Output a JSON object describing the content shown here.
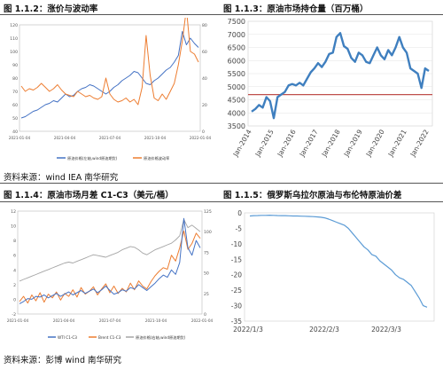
{
  "titles": {
    "tl": "图 1.1.2：涨价与波动率",
    "tr": "图 1.1.3：原油市场持仓量（百万桶）",
    "bl": "图 1.1.4：原油市场月差 C1-C3（美元/桶）",
    "br": "图 1.1.5：俄罗斯乌拉尔原油与布伦特原油价差"
  },
  "sources": {
    "top": "资料来源：wind   IEA 南华研究",
    "bottom": "资料来源：彭博  wind  南华研究"
  },
  "chart_data": [
    {
      "id": "tl",
      "type": "line",
      "title": "",
      "x_ticks": [
        "2021-01-04",
        "2021-04-04",
        "2021-07-04",
        "2021-10-04",
        "2022-01-04"
      ],
      "y_left_ticks": [
        40,
        50,
        60,
        70,
        80,
        90,
        100,
        110,
        120
      ],
      "y_right_ticks": [
        0,
        20,
        40,
        60,
        80
      ],
      "legend": [
        "原油价格(左轴,wind原油期货)",
        "原油价格波动率"
      ],
      "series": [
        {
          "name": "原油价格(左轴,wind原油期货)",
          "color": "#4472c4",
          "axis": "left",
          "values": [
            50,
            51,
            53,
            55,
            56,
            58,
            60,
            61,
            63,
            62,
            65,
            68,
            66,
            67,
            70,
            72,
            73,
            75,
            74,
            72,
            70,
            68,
            70,
            73,
            75,
            78,
            80,
            82,
            85,
            84,
            80,
            76,
            75,
            78,
            80,
            83,
            86,
            88,
            92,
            97,
            115,
            105,
            110,
            106,
            103
          ]
        },
        {
          "name": "原油价格波动率",
          "color": "#ed7d31",
          "axis": "right",
          "values": [
            34,
            30,
            32,
            31,
            33,
            36,
            33,
            30,
            32,
            35,
            31,
            28,
            27,
            26,
            30,
            28,
            26,
            27,
            25,
            24,
            26,
            40,
            28,
            24,
            22,
            23,
            25,
            22,
            24,
            20,
            33,
            72,
            42,
            25,
            23,
            28,
            24,
            30,
            36,
            50,
            68,
            92,
            60,
            58,
            52
          ]
        }
      ]
    },
    {
      "id": "tr",
      "type": "line",
      "title": "",
      "x_ticks": [
        "Jan-2014",
        "Jan-2015",
        "Jan-2016",
        "Jan-2017",
        "Jan-2018",
        "Jan-2019",
        "Jan-2020",
        "Jan-2021",
        "Jan-2022"
      ],
      "ylim": [
        3500,
        7500
      ],
      "y_ticks": [
        3500,
        4000,
        4500,
        5000,
        5500,
        6000,
        6500,
        7000,
        7500
      ],
      "hline": {
        "value": 4700,
        "color": "#c0504d"
      },
      "series": [
        {
          "name": "",
          "color": "#3f7fbf",
          "values": [
            4050,
            4150,
            4300,
            4200,
            4600,
            4450,
            3800,
            4600,
            4700,
            4800,
            5050,
            5100,
            5050,
            5150,
            5050,
            5300,
            5550,
            5700,
            5900,
            5750,
            5950,
            6250,
            6300,
            6900,
            7050,
            6550,
            6450,
            6100,
            5950,
            6300,
            6200,
            5950,
            5900,
            6200,
            6500,
            6200,
            6050,
            6400,
            6200,
            6500,
            6900,
            6500,
            6300,
            5700,
            5600,
            5500,
            4950,
            5700,
            5600
          ]
        }
      ]
    },
    {
      "id": "bl",
      "type": "line",
      "title": "",
      "x_ticks": [
        "2021-01-04",
        "2021-04-04",
        "2021-07-04",
        "2021-10-04",
        "2022-01-04"
      ],
      "y_left_ticks": [
        -2,
        0,
        2,
        4,
        6,
        8,
        10,
        12
      ],
      "y_right_ticks": [
        0,
        25,
        50,
        75,
        100,
        125
      ],
      "legend": [
        "WTI C1-C3",
        "Brent C1-C3",
        "原油价格(右轴,wind原油期货)"
      ],
      "series": [
        {
          "name": "WTI C1-C3",
          "color": "#4472c4",
          "axis": "left",
          "values": [
            -0.6,
            -0.3,
            0.1,
            0.0,
            0.4,
            0.3,
            0.6,
            0.2,
            0.5,
            0.8,
            0.4,
            0.7,
            1.0,
            0.6,
            0.9,
            1.2,
            0.8,
            1.1,
            1.4,
            0.9,
            1.3,
            1.8,
            1.2,
            0.7,
            0.9,
            1.3,
            1.1,
            1.6,
            1.4,
            2.0,
            1.6,
            1.2,
            1.7,
            2.2,
            2.8,
            3.3,
            3.0,
            4.0,
            3.4,
            5.0,
            11.0,
            7.0,
            6.0,
            8.0,
            7.0
          ]
        },
        {
          "name": "Brent C1-C3",
          "color": "#ed7d31",
          "axis": "left",
          "values": [
            -0.3,
            0.4,
            -0.5,
            0.6,
            -0.2,
            0.9,
            -0.4,
            0.7,
            0.2,
            1.0,
            -0.1,
            0.8,
            0.4,
            1.3,
            0.3,
            1.6,
            0.7,
            1.1,
            1.7,
            0.6,
            1.4,
            2.1,
            0.9,
            1.8,
            0.8,
            1.5,
            1.0,
            2.2,
            1.3,
            2.5,
            1.8,
            1.4,
            2.4,
            3.2,
            3.8,
            4.3,
            4.1,
            6.0,
            5.2,
            7.0,
            9.3,
            6.8,
            7.6,
            9.0,
            8.3
          ]
        },
        {
          "name": "原油价格(右轴,wind原油期货)",
          "color": "#a5a5a5",
          "axis": "right",
          "values": [
            40,
            42,
            44,
            46,
            48,
            50,
            52,
            54,
            56,
            58,
            60,
            62,
            63,
            62,
            64,
            66,
            68,
            70,
            72,
            71,
            70,
            69,
            71,
            73,
            75,
            78,
            80,
            82,
            81,
            78,
            74,
            72,
            75,
            78,
            80,
            82,
            84,
            86,
            90,
            95,
            115,
            105,
            108,
            104,
            100
          ]
        }
      ]
    },
    {
      "id": "br",
      "type": "line",
      "title": "",
      "x_ticks": [
        "2022/1/3",
        "2022/2/3",
        "2022/3/3"
      ],
      "ylim": [
        -35,
        0
      ],
      "y_ticks": [
        0,
        -5,
        -10,
        -15,
        -20,
        -25,
        -30,
        -35
      ],
      "series": [
        {
          "name": "",
          "color": "#5b9bd5",
          "values": [
            -1.0,
            -0.9,
            -0.85,
            -0.8,
            -0.8,
            -0.75,
            -0.8,
            -0.85,
            -0.9,
            -0.9,
            -0.95,
            -1.0,
            -1.0,
            -1.05,
            -1.1,
            -1.15,
            -1.2,
            -1.3,
            -1.4,
            -1.6,
            -2.0,
            -2.5,
            -3.0,
            -3.5,
            -4.0,
            -5.0,
            -6.5,
            -8.0,
            -9.5,
            -11.0,
            -12.0,
            -13.5,
            -14.0,
            -15.5,
            -16.5,
            -17.5,
            -18.5,
            -20.0,
            -21.0,
            -21.5,
            -22.5,
            -23.5,
            -25.5,
            -27.5,
            -30.0,
            -30.5
          ]
        }
      ]
    }
  ]
}
